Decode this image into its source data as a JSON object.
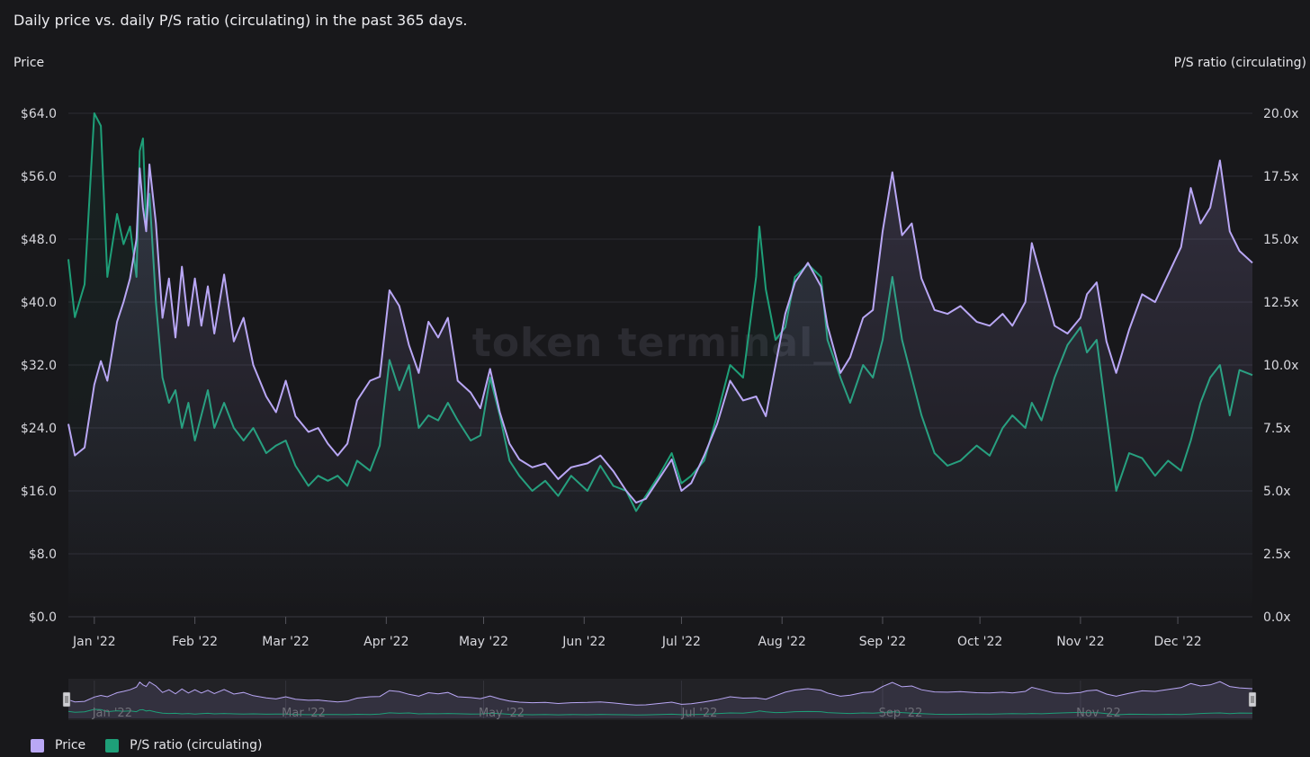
{
  "header": {
    "title": "Daily price vs. daily P/S ratio (circulating) in the past 365 days.",
    "left_axis_title": "Price",
    "right_axis_title": "P/S ratio (circulating)"
  },
  "watermark": "token terminal_",
  "colors": {
    "background": "#18181b",
    "price": "#b9a7f5",
    "ps_ratio": "#1e9f78",
    "grid": "#2c2c33"
  },
  "legend": [
    {
      "label": "Price",
      "color": "#b9a7f5"
    },
    {
      "label": "P/S ratio (circulating)",
      "color": "#1e9f78"
    }
  ],
  "chart_data": {
    "type": "line",
    "title": "Daily price vs. daily P/S ratio (circulating) in the past 365 days.",
    "x_type": "date",
    "x_ticks": [
      "Jan '22",
      "Feb '22",
      "Mar '22",
      "Apr '22",
      "May '22",
      "Jun '22",
      "Jul '22",
      "Aug '22",
      "Sep '22",
      "Oct '22",
      "Nov '22",
      "Dec '22"
    ],
    "navigator_ticks": [
      "Jan '22",
      "Mar '22",
      "May '22",
      "Jul '22",
      "Sep '22",
      "Nov '22"
    ],
    "x_range": [
      "2021-12-24",
      "2022-12-24"
    ],
    "y_left": {
      "label": "Price",
      "ticks": [
        "$0.0",
        "$8.0",
        "$16.0",
        "$24.0",
        "$32.0",
        "$40.0",
        "$48.0",
        "$56.0",
        "$64.0"
      ],
      "range": [
        0,
        64
      ]
    },
    "y_right": {
      "label": "P/S ratio (circulating)",
      "ticks": [
        "0.0x",
        "2.5x",
        "5.0x",
        "7.5x",
        "10.0x",
        "12.5x",
        "15.0x",
        "17.5x",
        "20.0x"
      ],
      "range": [
        0,
        20
      ]
    },
    "grid": true,
    "legend_position": "bottom-left",
    "series": [
      {
        "name": "Price",
        "axis": "left",
        "points": [
          [
            "2021-12-24",
            24.5
          ],
          [
            "2021-12-26",
            20.5
          ],
          [
            "2021-12-29",
            21.5
          ],
          [
            "2022-01-01",
            29.5
          ],
          [
            "2022-01-03",
            32.5
          ],
          [
            "2022-01-05",
            30.0
          ],
          [
            "2022-01-08",
            37.5
          ],
          [
            "2022-01-10",
            40.0
          ],
          [
            "2022-01-12",
            43.0
          ],
          [
            "2022-01-14",
            48.0
          ],
          [
            "2022-01-15",
            57.0
          ],
          [
            "2022-01-16",
            52.0
          ],
          [
            "2022-01-17",
            49.0
          ],
          [
            "2022-01-18",
            57.5
          ],
          [
            "2022-01-20",
            50.0
          ],
          [
            "2022-01-22",
            38.0
          ],
          [
            "2022-01-24",
            43.0
          ],
          [
            "2022-01-26",
            35.5
          ],
          [
            "2022-01-28",
            44.5
          ],
          [
            "2022-01-30",
            37.0
          ],
          [
            "2022-02-01",
            43.0
          ],
          [
            "2022-02-03",
            37.0
          ],
          [
            "2022-02-05",
            42.0
          ],
          [
            "2022-02-07",
            36.0
          ],
          [
            "2022-02-10",
            43.5
          ],
          [
            "2022-02-13",
            35.0
          ],
          [
            "2022-02-16",
            38.0
          ],
          [
            "2022-02-19",
            32.0
          ],
          [
            "2022-02-23",
            28.0
          ],
          [
            "2022-02-26",
            26.0
          ],
          [
            "2022-03-01",
            30.0
          ],
          [
            "2022-03-04",
            25.5
          ],
          [
            "2022-03-08",
            23.5
          ],
          [
            "2022-03-11",
            24.0
          ],
          [
            "2022-03-14",
            22.0
          ],
          [
            "2022-03-17",
            20.5
          ],
          [
            "2022-03-20",
            22.0
          ],
          [
            "2022-03-23",
            27.5
          ],
          [
            "2022-03-27",
            30.0
          ],
          [
            "2022-03-30",
            30.5
          ],
          [
            "2022-04-02",
            41.5
          ],
          [
            "2022-04-05",
            39.5
          ],
          [
            "2022-04-08",
            34.5
          ],
          [
            "2022-04-11",
            31.0
          ],
          [
            "2022-04-14",
            37.5
          ],
          [
            "2022-04-17",
            35.5
          ],
          [
            "2022-04-20",
            38.0
          ],
          [
            "2022-04-23",
            30.0
          ],
          [
            "2022-04-27",
            28.5
          ],
          [
            "2022-04-30",
            26.5
          ],
          [
            "2022-05-03",
            31.5
          ],
          [
            "2022-05-06",
            26.0
          ],
          [
            "2022-05-09",
            22.0
          ],
          [
            "2022-05-12",
            20.0
          ],
          [
            "2022-05-16",
            19.0
          ],
          [
            "2022-05-20",
            19.5
          ],
          [
            "2022-05-24",
            17.5
          ],
          [
            "2022-05-28",
            19.0
          ],
          [
            "2022-06-02",
            19.5
          ],
          [
            "2022-06-06",
            20.5
          ],
          [
            "2022-06-10",
            18.5
          ],
          [
            "2022-06-14",
            16.0
          ],
          [
            "2022-06-17",
            14.5
          ],
          [
            "2022-06-20",
            15.0
          ],
          [
            "2022-06-24",
            17.5
          ],
          [
            "2022-06-28",
            20.0
          ],
          [
            "2022-07-01",
            16.0
          ],
          [
            "2022-07-04",
            17.0
          ],
          [
            "2022-07-08",
            20.5
          ],
          [
            "2022-07-12",
            24.5
          ],
          [
            "2022-07-16",
            30.0
          ],
          [
            "2022-07-20",
            27.5
          ],
          [
            "2022-07-24",
            28.0
          ],
          [
            "2022-07-27",
            25.5
          ],
          [
            "2022-07-30",
            32.0
          ],
          [
            "2022-08-02",
            38.5
          ],
          [
            "2022-08-05",
            42.5
          ],
          [
            "2022-08-09",
            45.0
          ],
          [
            "2022-08-13",
            42.0
          ],
          [
            "2022-08-15",
            37.0
          ],
          [
            "2022-08-19",
            31.0
          ],
          [
            "2022-08-22",
            33.0
          ],
          [
            "2022-08-26",
            38.0
          ],
          [
            "2022-08-29",
            39.0
          ],
          [
            "2022-09-01",
            49.0
          ],
          [
            "2022-09-04",
            56.5
          ],
          [
            "2022-09-07",
            48.5
          ],
          [
            "2022-09-10",
            50.0
          ],
          [
            "2022-09-13",
            43.0
          ],
          [
            "2022-09-17",
            39.0
          ],
          [
            "2022-09-21",
            38.5
          ],
          [
            "2022-09-25",
            39.5
          ],
          [
            "2022-09-30",
            37.5
          ],
          [
            "2022-10-04",
            37.0
          ],
          [
            "2022-10-08",
            38.5
          ],
          [
            "2022-10-11",
            37.0
          ],
          [
            "2022-10-15",
            40.0
          ],
          [
            "2022-10-17",
            47.5
          ],
          [
            "2022-10-20",
            43.0
          ],
          [
            "2022-10-24",
            37.0
          ],
          [
            "2022-10-28",
            36.0
          ],
          [
            "2022-11-01",
            38.0
          ],
          [
            "2022-11-03",
            41.0
          ],
          [
            "2022-11-06",
            42.5
          ],
          [
            "2022-11-09",
            35.0
          ],
          [
            "2022-11-12",
            31.0
          ],
          [
            "2022-11-16",
            36.5
          ],
          [
            "2022-11-20",
            41.0
          ],
          [
            "2022-11-24",
            40.0
          ],
          [
            "2022-11-28",
            43.5
          ],
          [
            "2022-12-02",
            47.0
          ],
          [
            "2022-12-05",
            54.5
          ],
          [
            "2022-12-08",
            50.0
          ],
          [
            "2022-12-11",
            52.0
          ],
          [
            "2022-12-14",
            58.0
          ],
          [
            "2022-12-17",
            49.0
          ],
          [
            "2022-12-20",
            46.5
          ],
          [
            "2022-12-24",
            45.0
          ]
        ]
      },
      {
        "name": "P/S ratio (circulating)",
        "axis": "right",
        "points": [
          [
            "2021-12-24",
            14.2
          ],
          [
            "2021-12-26",
            11.9
          ],
          [
            "2021-12-29",
            13.2
          ],
          [
            "2022-01-01",
            20.0
          ],
          [
            "2022-01-03",
            19.5
          ],
          [
            "2022-01-05",
            13.5
          ],
          [
            "2022-01-08",
            16.0
          ],
          [
            "2022-01-10",
            14.8
          ],
          [
            "2022-01-12",
            15.5
          ],
          [
            "2022-01-14",
            13.5
          ],
          [
            "2022-01-15",
            18.5
          ],
          [
            "2022-01-16",
            19.0
          ],
          [
            "2022-01-17",
            15.5
          ],
          [
            "2022-01-18",
            16.8
          ],
          [
            "2022-01-20",
            12.5
          ],
          [
            "2022-01-22",
            9.5
          ],
          [
            "2022-01-24",
            8.5
          ],
          [
            "2022-01-26",
            9.0
          ],
          [
            "2022-01-28",
            7.5
          ],
          [
            "2022-01-30",
            8.5
          ],
          [
            "2022-02-01",
            7.0
          ],
          [
            "2022-02-03",
            8.0
          ],
          [
            "2022-02-05",
            9.0
          ],
          [
            "2022-02-07",
            7.5
          ],
          [
            "2022-02-10",
            8.5
          ],
          [
            "2022-02-13",
            7.5
          ],
          [
            "2022-02-16",
            7.0
          ],
          [
            "2022-02-19",
            7.5
          ],
          [
            "2022-02-23",
            6.5
          ],
          [
            "2022-02-26",
            6.8
          ],
          [
            "2022-03-01",
            7.0
          ],
          [
            "2022-03-04",
            6.0
          ],
          [
            "2022-03-08",
            5.2
          ],
          [
            "2022-03-11",
            5.6
          ],
          [
            "2022-03-14",
            5.4
          ],
          [
            "2022-03-17",
            5.6
          ],
          [
            "2022-03-20",
            5.2
          ],
          [
            "2022-03-23",
            6.2
          ],
          [
            "2022-03-27",
            5.8
          ],
          [
            "2022-03-30",
            6.8
          ],
          [
            "2022-04-02",
            10.2
          ],
          [
            "2022-04-05",
            9.0
          ],
          [
            "2022-04-08",
            10.0
          ],
          [
            "2022-04-11",
            7.5
          ],
          [
            "2022-04-14",
            8.0
          ],
          [
            "2022-04-17",
            7.8
          ],
          [
            "2022-04-20",
            8.5
          ],
          [
            "2022-04-23",
            7.8
          ],
          [
            "2022-04-27",
            7.0
          ],
          [
            "2022-04-30",
            7.2
          ],
          [
            "2022-05-03",
            9.5
          ],
          [
            "2022-05-06",
            8.0
          ],
          [
            "2022-05-09",
            6.2
          ],
          [
            "2022-05-12",
            5.6
          ],
          [
            "2022-05-16",
            5.0
          ],
          [
            "2022-05-20",
            5.4
          ],
          [
            "2022-05-24",
            4.8
          ],
          [
            "2022-05-28",
            5.6
          ],
          [
            "2022-06-02",
            5.0
          ],
          [
            "2022-06-06",
            6.0
          ],
          [
            "2022-06-10",
            5.2
          ],
          [
            "2022-06-14",
            5.0
          ],
          [
            "2022-06-17",
            4.2
          ],
          [
            "2022-06-20",
            4.8
          ],
          [
            "2022-06-24",
            5.6
          ],
          [
            "2022-06-28",
            6.5
          ],
          [
            "2022-07-01",
            5.3
          ],
          [
            "2022-07-04",
            5.6
          ],
          [
            "2022-07-08",
            6.2
          ],
          [
            "2022-07-12",
            8.0
          ],
          [
            "2022-07-16",
            10.0
          ],
          [
            "2022-07-20",
            9.5
          ],
          [
            "2022-07-24",
            13.5
          ],
          [
            "2022-07-25",
            15.5
          ],
          [
            "2022-07-27",
            13.0
          ],
          [
            "2022-07-30",
            11.0
          ],
          [
            "2022-08-02",
            11.5
          ],
          [
            "2022-08-05",
            13.5
          ],
          [
            "2022-08-09",
            14.0
          ],
          [
            "2022-08-13",
            13.5
          ],
          [
            "2022-08-15",
            11.0
          ],
          [
            "2022-08-19",
            9.5
          ],
          [
            "2022-08-22",
            8.5
          ],
          [
            "2022-08-26",
            10.0
          ],
          [
            "2022-08-29",
            9.5
          ],
          [
            "2022-09-01",
            11.0
          ],
          [
            "2022-09-04",
            13.5
          ],
          [
            "2022-09-07",
            11.0
          ],
          [
            "2022-09-10",
            9.5
          ],
          [
            "2022-09-13",
            8.0
          ],
          [
            "2022-09-17",
            6.5
          ],
          [
            "2022-09-21",
            6.0
          ],
          [
            "2022-09-25",
            6.2
          ],
          [
            "2022-09-30",
            6.8
          ],
          [
            "2022-10-04",
            6.4
          ],
          [
            "2022-10-08",
            7.5
          ],
          [
            "2022-10-11",
            8.0
          ],
          [
            "2022-10-15",
            7.5
          ],
          [
            "2022-10-17",
            8.5
          ],
          [
            "2022-10-20",
            7.8
          ],
          [
            "2022-10-24",
            9.5
          ],
          [
            "2022-10-28",
            10.8
          ],
          [
            "2022-11-01",
            11.5
          ],
          [
            "2022-11-03",
            10.5
          ],
          [
            "2022-11-06",
            11.0
          ],
          [
            "2022-11-09",
            8.0
          ],
          [
            "2022-11-12",
            5.0
          ],
          [
            "2022-11-16",
            6.5
          ],
          [
            "2022-11-20",
            6.3
          ],
          [
            "2022-11-24",
            5.6
          ],
          [
            "2022-11-28",
            6.2
          ],
          [
            "2022-12-02",
            5.8
          ],
          [
            "2022-12-05",
            7.0
          ],
          [
            "2022-12-08",
            8.5
          ],
          [
            "2022-12-11",
            9.5
          ],
          [
            "2022-12-14",
            10.0
          ],
          [
            "2022-12-17",
            8.0
          ],
          [
            "2022-12-20",
            9.8
          ],
          [
            "2022-12-24",
            9.6
          ]
        ]
      }
    ]
  }
}
